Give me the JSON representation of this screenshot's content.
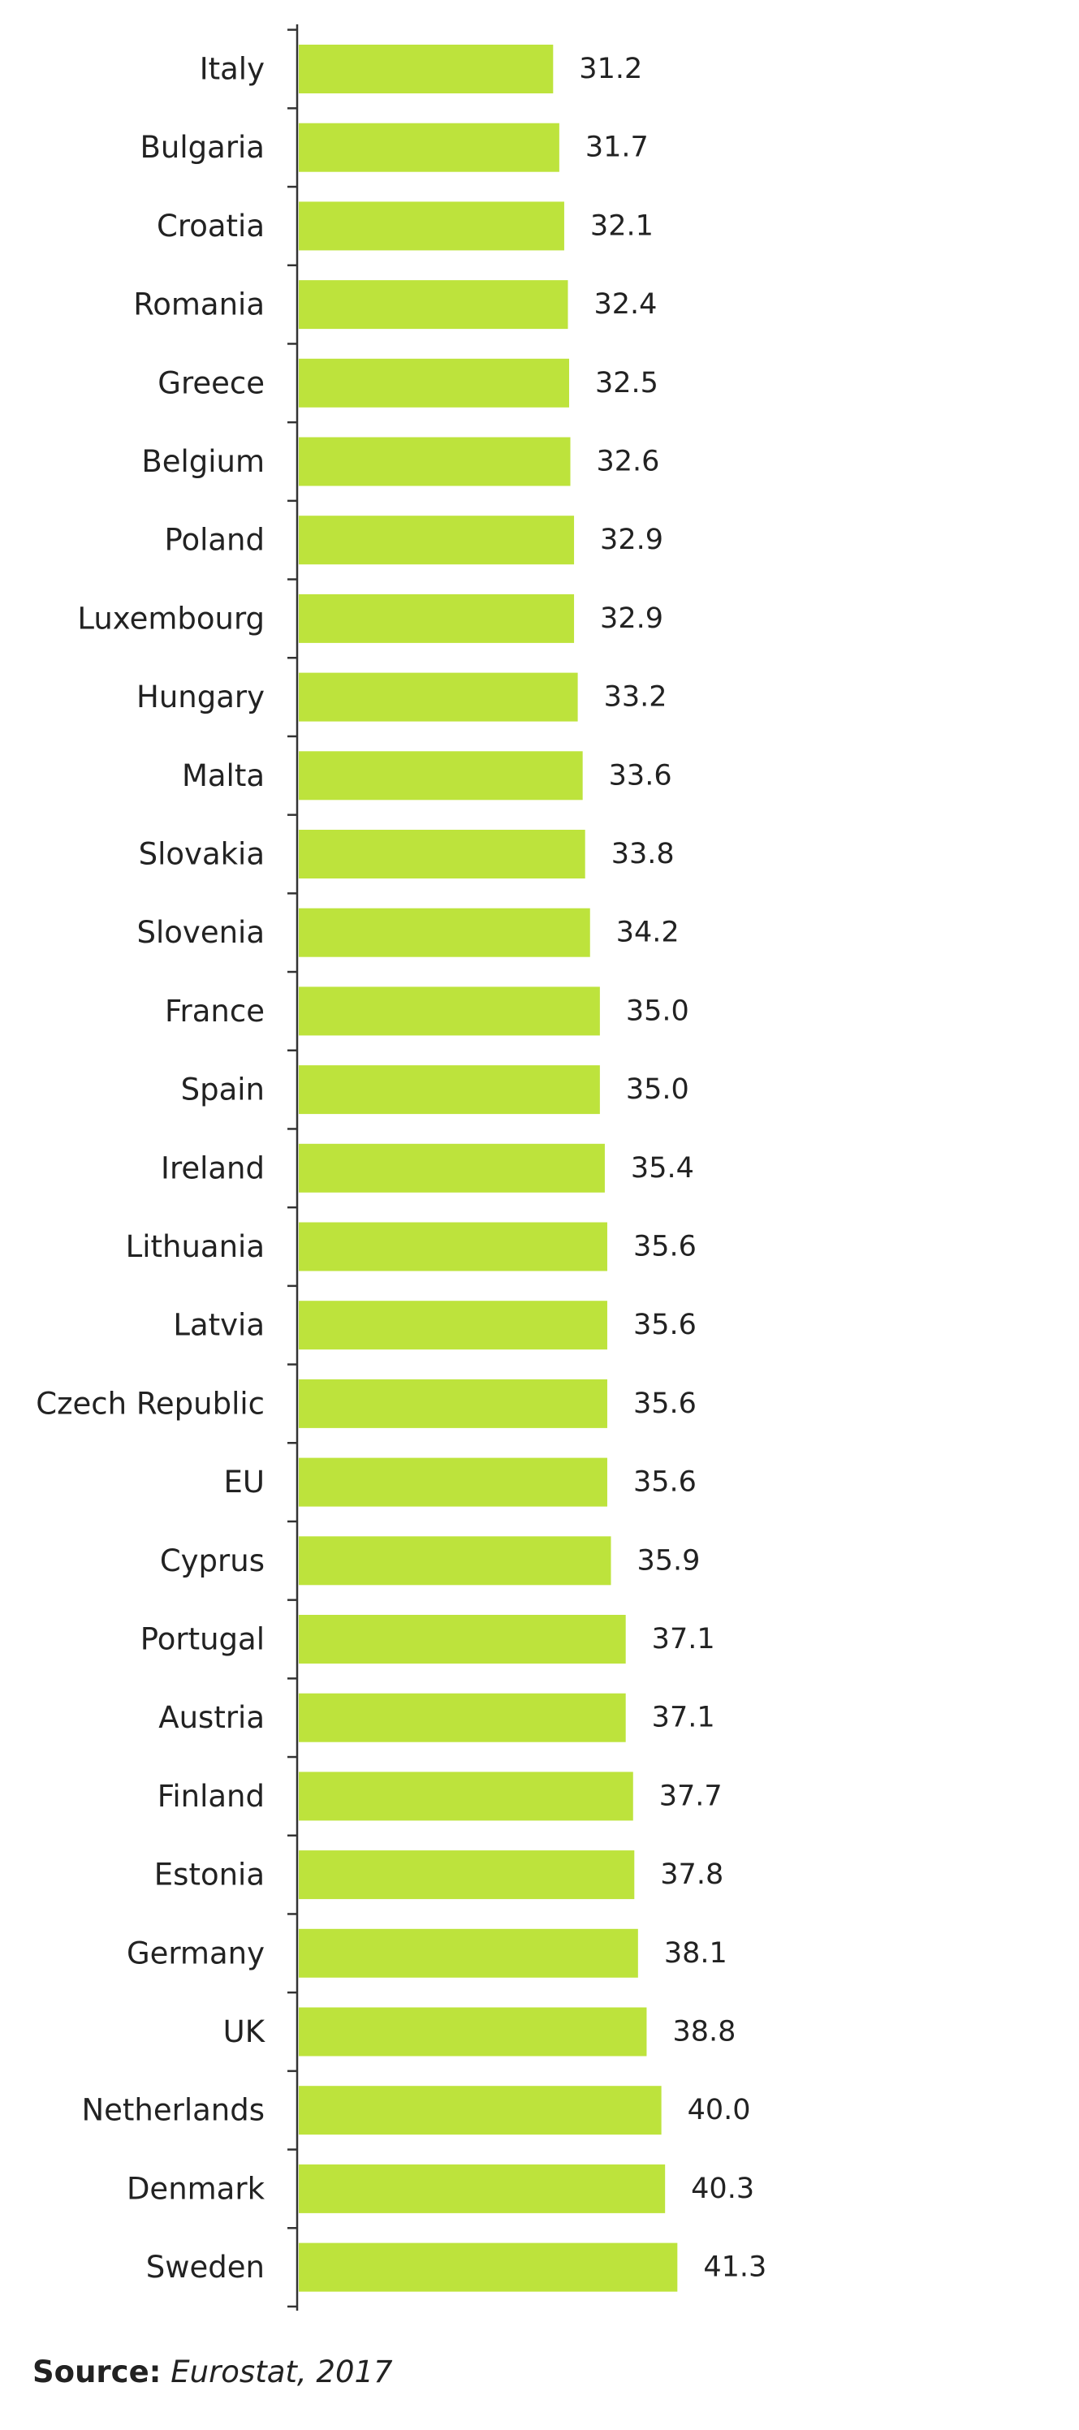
{
  "chart_data": {
    "type": "bar",
    "orientation": "horizontal",
    "categories": [
      "Italy",
      "Bulgaria",
      "Croatia",
      "Romania",
      "Greece",
      "Belgium",
      "Poland",
      "Luxembourg",
      "Hungary",
      "Malta",
      "Slovakia",
      "Slovenia",
      "France",
      "Spain",
      "Ireland",
      "Lithuania",
      "Latvia",
      "Czech Republic",
      "EU",
      "Cyprus",
      "Portugal",
      "Austria",
      "Finland",
      "Estonia",
      "Germany",
      "UK",
      "Netherlands",
      "Denmark",
      "Sweden"
    ],
    "values": [
      31.2,
      31.7,
      32.1,
      32.4,
      32.5,
      32.6,
      32.9,
      32.9,
      33.2,
      33.6,
      33.8,
      34.2,
      35.0,
      35.0,
      35.4,
      35.6,
      35.6,
      35.6,
      35.6,
      35.9,
      37.1,
      37.1,
      37.7,
      37.8,
      38.1,
      38.8,
      40.0,
      40.3,
      41.3
    ],
    "value_labels": [
      "31.2",
      "31.7",
      "32.1",
      "32.4",
      "32.5",
      "32.6",
      "32.9",
      "32.9",
      "33.2",
      "33.6",
      "33.8",
      "34.2",
      "35.0",
      "35.0",
      "35.4",
      "35.6",
      "35.6",
      "35.6",
      "35.6",
      "35.9",
      "37.1",
      "37.1",
      "37.7",
      "37.8",
      "38.1",
      "38.8",
      "40.0",
      "40.3",
      "41.3"
    ],
    "title": "",
    "xlabel": "",
    "ylabel": "",
    "grid": false,
    "bar_color": "#bde33c"
  },
  "source": {
    "label": "Source:",
    "text": "Eurostat, 2017"
  }
}
